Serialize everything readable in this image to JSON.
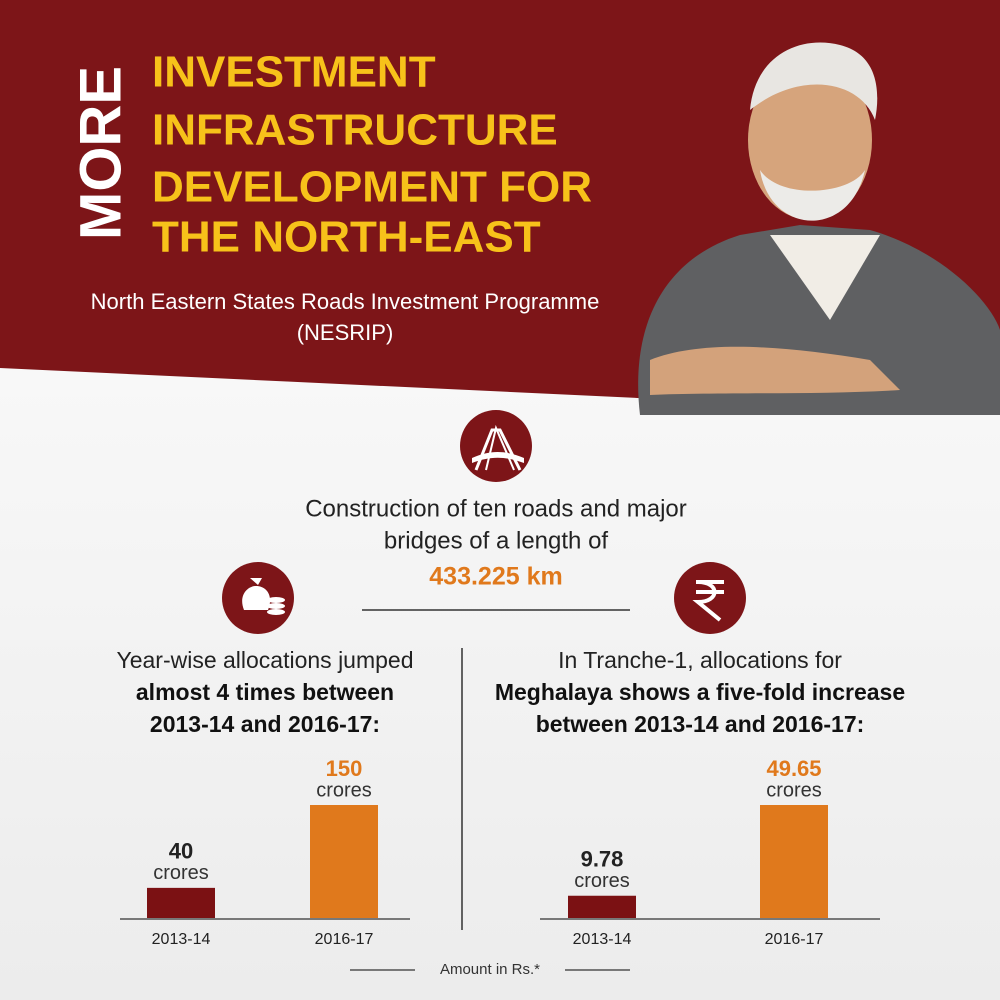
{
  "header": {
    "vertical_word": "MORE",
    "lines": [
      "INVESTMENT",
      "INFRASTRUCTURE",
      "DEVELOPMENT FOR",
      "THE NORTH-EAST"
    ],
    "subtitle": [
      "North Eastern States Roads Investment Programme",
      "(NESRIP)"
    ]
  },
  "intro": {
    "lines": [
      "Construction of ten roads and major",
      "bridges of a length of"
    ],
    "highlight": "433.225 km"
  },
  "chart_data": [
    {
      "type": "bar",
      "title": "Year-wise allocations jumped",
      "subtitle": [
        "almost 4 times between",
        "2013-14 and 2016-17:"
      ],
      "categories": [
        "2013-14",
        "2016-17"
      ],
      "values": [
        40,
        150
      ],
      "unit": "crores",
      "colors": [
        "#7b1113",
        "#e0791c"
      ]
    },
    {
      "type": "bar",
      "title": "In Tranche-1, allocations for",
      "subtitle": [
        "Meghalaya shows a five-fold increase",
        "between 2013-14 and 2016-17:"
      ],
      "categories": [
        "2013-14",
        "2016-17"
      ],
      "values": [
        9.78,
        49.65
      ],
      "unit": "crores",
      "colors": [
        "#7b1113",
        "#e0791c"
      ]
    }
  ],
  "footnote": "Amount in Rs.*"
}
